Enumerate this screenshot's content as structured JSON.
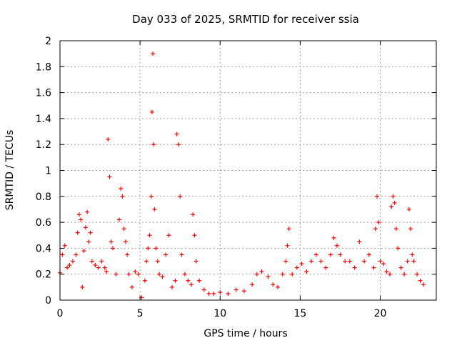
{
  "chart_data": {
    "type": "scatter",
    "title": "Day 033 of 2025, SRMTID for receiver ssia",
    "xlabel": "GPS time / hours",
    "ylabel": "SRMTID / TECUs",
    "xlim": [
      0,
      23.5
    ],
    "ylim": [
      0,
      2
    ],
    "xticks": [
      0,
      5,
      10,
      15,
      20
    ],
    "xtick_labels": [
      "0",
      "5",
      "10",
      "15",
      "20"
    ],
    "yticks": [
      0,
      0.2,
      0.4,
      0.6,
      0.8,
      1,
      1.2,
      1.4,
      1.6,
      1.8,
      2
    ],
    "ytick_labels": [
      "0",
      "0.2",
      "0.4",
      "0.6",
      "0.8",
      "1",
      "1.2",
      "1.4",
      "1.6",
      "1.8",
      "2"
    ],
    "grid": true,
    "marker": "+",
    "series": [
      {
        "name": "SRMTID",
        "color": "#ff0000",
        "x": [
          0.0,
          0.15,
          0.3,
          0.45,
          0.6,
          0.8,
          1.0,
          1.1,
          1.2,
          1.3,
          1.4,
          1.5,
          1.6,
          1.7,
          1.8,
          1.9,
          2.0,
          2.2,
          2.4,
          2.6,
          2.8,
          2.9,
          3.0,
          3.1,
          3.2,
          3.3,
          3.5,
          3.7,
          3.8,
          3.9,
          4.0,
          4.1,
          4.2,
          4.3,
          4.5,
          4.7,
          4.9,
          5.1,
          5.3,
          5.4,
          5.5,
          5.6,
          5.7,
          5.75,
          5.8,
          5.85,
          5.9,
          6.0,
          6.1,
          6.2,
          6.4,
          6.6,
          6.8,
          7.0,
          7.2,
          7.3,
          7.4,
          7.5,
          7.6,
          7.8,
          8.0,
          8.2,
          8.3,
          8.4,
          8.5,
          8.7,
          9.0,
          9.3,
          9.6,
          10.0,
          10.5,
          11.0,
          11.5,
          12.0,
          12.3,
          12.6,
          13.0,
          13.3,
          13.6,
          13.9,
          14.1,
          14.2,
          14.3,
          14.5,
          14.8,
          15.1,
          15.4,
          15.7,
          16.0,
          16.3,
          16.6,
          16.9,
          17.1,
          17.3,
          17.5,
          17.8,
          18.1,
          18.4,
          18.7,
          19.0,
          19.3,
          19.6,
          19.7,
          19.8,
          19.9,
          20.0,
          20.2,
          20.4,
          20.6,
          20.7,
          20.8,
          20.9,
          21.0,
          21.1,
          21.3,
          21.5,
          21.7,
          21.8,
          21.9,
          22.0,
          22.1,
          22.3,
          22.5,
          22.7
        ],
        "y": [
          0.21,
          0.35,
          0.42,
          0.25,
          0.27,
          0.3,
          0.35,
          0.52,
          0.66,
          0.62,
          0.1,
          0.38,
          0.56,
          0.68,
          0.45,
          0.52,
          0.3,
          0.27,
          0.25,
          0.3,
          0.25,
          0.22,
          1.24,
          0.95,
          0.45,
          0.4,
          0.2,
          0.62,
          0.86,
          0.8,
          0.55,
          0.45,
          0.35,
          0.2,
          0.1,
          0.22,
          0.2,
          0.02,
          0.15,
          0.3,
          0.4,
          0.5,
          0.8,
          1.45,
          1.9,
          1.2,
          0.7,
          0.4,
          0.3,
          0.2,
          0.18,
          0.35,
          0.5,
          0.1,
          0.15,
          1.28,
          1.2,
          0.8,
          0.35,
          0.2,
          0.15,
          0.12,
          0.66,
          0.5,
          0.3,
          0.15,
          0.08,
          0.05,
          0.05,
          0.06,
          0.05,
          0.08,
          0.07,
          0.12,
          0.2,
          0.22,
          0.18,
          0.12,
          0.1,
          0.2,
          0.3,
          0.42,
          0.55,
          0.2,
          0.25,
          0.28,
          0.22,
          0.3,
          0.35,
          0.3,
          0.25,
          0.35,
          0.48,
          0.42,
          0.35,
          0.3,
          0.3,
          0.25,
          0.45,
          0.3,
          0.35,
          0.25,
          0.55,
          0.8,
          0.6,
          0.3,
          0.28,
          0.22,
          0.2,
          0.72,
          0.8,
          0.75,
          0.55,
          0.4,
          0.25,
          0.2,
          0.3,
          0.7,
          0.55,
          0.35,
          0.3,
          0.2,
          0.15,
          0.12
        ]
      }
    ]
  }
}
